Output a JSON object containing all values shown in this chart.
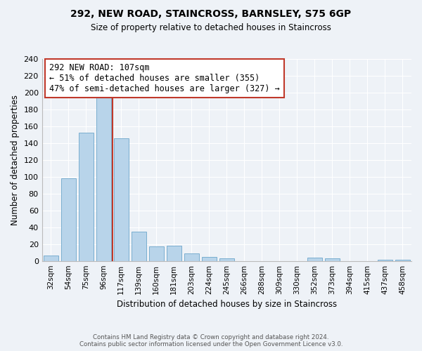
{
  "title": "292, NEW ROAD, STAINCROSS, BARNSLEY, S75 6GP",
  "subtitle": "Size of property relative to detached houses in Staincross",
  "xlabel": "Distribution of detached houses by size in Staincross",
  "ylabel": "Number of detached properties",
  "bar_labels": [
    "32sqm",
    "54sqm",
    "75sqm",
    "96sqm",
    "117sqm",
    "139sqm",
    "160sqm",
    "181sqm",
    "203sqm",
    "224sqm",
    "245sqm",
    "266sqm",
    "288sqm",
    "309sqm",
    "330sqm",
    "352sqm",
    "373sqm",
    "394sqm",
    "415sqm",
    "437sqm",
    "458sqm"
  ],
  "bar_values": [
    6,
    98,
    152,
    200,
    146,
    35,
    17,
    18,
    9,
    5,
    3,
    0,
    0,
    0,
    0,
    4,
    3,
    0,
    0,
    1,
    1
  ],
  "bar_color": "#b8d4ea",
  "bar_edge_color": "#7aaed0",
  "ylim": [
    0,
    240
  ],
  "yticks": [
    0,
    20,
    40,
    60,
    80,
    100,
    120,
    140,
    160,
    180,
    200,
    220,
    240
  ],
  "property_label": "292 NEW ROAD: 107sqm",
  "annotation_line1": "← 51% of detached houses are smaller (355)",
  "annotation_line2": "47% of semi-detached houses are larger (327) →",
  "vline_color": "#c0392b",
  "box_color": "#c0392b",
  "footnote1": "Contains HM Land Registry data © Crown copyright and database right 2024.",
  "footnote2": "Contains public sector information licensed under the Open Government Licence v3.0.",
  "background_color": "#eef2f7",
  "grid_color": "#ffffff"
}
